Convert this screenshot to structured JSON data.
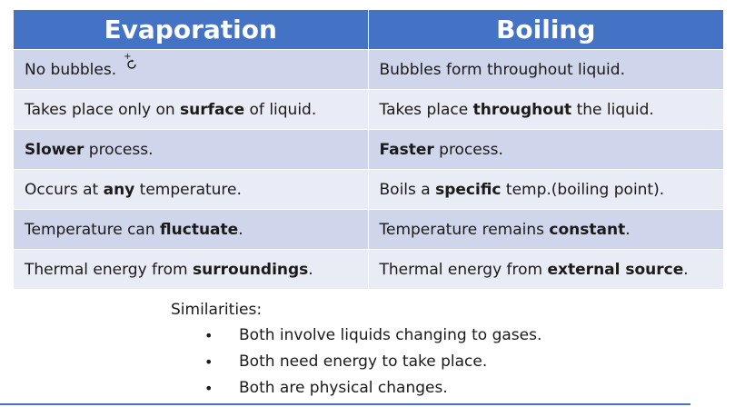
{
  "table": {
    "headers": [
      "Evaporation",
      "Boiling"
    ],
    "rows": [
      {
        "evaporation": [
          {
            "text": "No bubbles.",
            "bold": false
          }
        ],
        "boiling": [
          {
            "text": "Bubbles form throughout liquid.",
            "bold": false
          }
        ]
      },
      {
        "evaporation": [
          {
            "text": "Takes place only on ",
            "bold": false
          },
          {
            "text": "surface",
            "bold": true
          },
          {
            "text": " of liquid.",
            "bold": false
          }
        ],
        "boiling": [
          {
            "text": "Takes place ",
            "bold": false
          },
          {
            "text": "throughout",
            "bold": true
          },
          {
            "text": " the liquid.",
            "bold": false
          }
        ]
      },
      {
        "evaporation": [
          {
            "text": "Slower",
            "bold": true
          },
          {
            "text": " process.",
            "bold": false
          }
        ],
        "boiling": [
          {
            "text": "Faster",
            "bold": true
          },
          {
            "text": " process.",
            "bold": false
          }
        ]
      },
      {
        "evaporation": [
          {
            "text": "Occurs at ",
            "bold": false
          },
          {
            "text": "any",
            "bold": true
          },
          {
            "text": " temperature.",
            "bold": false
          }
        ],
        "boiling": [
          {
            "text": "Boils a ",
            "bold": false
          },
          {
            "text": "specific",
            "bold": true
          },
          {
            "text": " temp.(boiling point).",
            "bold": false
          }
        ]
      },
      {
        "evaporation": [
          {
            "text": "Temperature can ",
            "bold": false
          },
          {
            "text": "fluctuate",
            "bold": true
          },
          {
            "text": ".",
            "bold": false
          }
        ],
        "boiling": [
          {
            "text": "Temperature remains ",
            "bold": false
          },
          {
            "text": "constant",
            "bold": true
          },
          {
            "text": ".",
            "bold": false
          }
        ]
      },
      {
        "evaporation": [
          {
            "text": "Thermal energy from ",
            "bold": false
          },
          {
            "text": "surroundings",
            "bold": true
          },
          {
            "text": ".",
            "bold": false
          }
        ],
        "boiling": [
          {
            "text": "Thermal energy from ",
            "bold": false
          },
          {
            "text": "external source",
            "bold": true
          },
          {
            "text": ".",
            "bold": false
          }
        ]
      }
    ]
  },
  "cursor_icon": "busy-cursor-icon",
  "similarities": {
    "title": "Similarities:",
    "bullet": "•",
    "items": [
      "Both involve liquids changing to gases.",
      "Both need energy to take place.",
      "Both are physical changes."
    ]
  },
  "colors": {
    "header_bg": "#4472c4",
    "row_shade": "#cfd5ea",
    "row_plain": "#e9ebf5"
  }
}
